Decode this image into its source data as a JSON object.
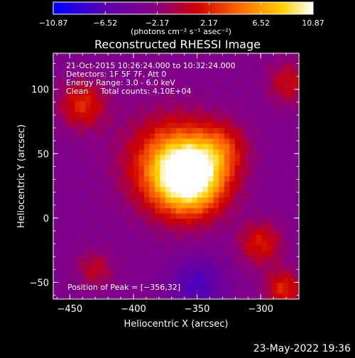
{
  "chart_data": {
    "type": "heatmap",
    "title": "Reconstructed RHESSI Image",
    "xlabel": "Heliocentric X (arcsec)",
    "ylabel": "Heliocentric Y (arcsec)",
    "xlim": [
      -463,
      -270
    ],
    "ylim": [
      -63,
      128
    ],
    "xticks": [
      -450,
      -400,
      -350,
      -300
    ],
    "xtick_labels": [
      "−450",
      "−400",
      "−350",
      "−300"
    ],
    "yticks": [
      -50,
      0,
      50,
      100
    ],
    "ytick_labels": [
      "−50",
      "0",
      "50",
      "100"
    ],
    "colorbar": {
      "range": [
        -10.87,
        10.87
      ],
      "ticks": [
        -10.87,
        -6.52,
        -2.17,
        2.17,
        6.52,
        10.87
      ],
      "tick_labels": [
        "−10.87",
        "−6.52",
        "−2.17",
        "2.17",
        "6.52",
        "10.87"
      ],
      "units_label": "(photons cm⁻² s⁻¹ asec⁻²)",
      "colors": [
        "#0000ff",
        "#5a00b0",
        "#8a0080",
        "#cc0000",
        "#ff6a00",
        "#ffd000",
        "#ffffff"
      ]
    },
    "annotations": [
      "21‐Oct‐2015 10:26:24.000 to 10:32:24.000",
      "Detectors: 1F 5F 7F, Att 0",
      "Energy Range: 3.0 ‐ 6.0 keV",
      "Clean     Total counts: 4.10E+04"
    ],
    "peak_label": "Position of Peak = [−356,32]",
    "peak": {
      "x": -356,
      "y": 32,
      "value": 10.87
    },
    "grid": false,
    "sources": [
      {
        "x": -356,
        "y": 32,
        "amp": 14.5,
        "sigma": 20
      },
      {
        "x": -372,
        "y": 44,
        "amp": 6.0,
        "sigma": 26
      },
      {
        "x": -330,
        "y": 55,
        "amp": 4.0,
        "sigma": 14
      },
      {
        "x": -440,
        "y": 88,
        "amp": 5.5,
        "sigma": 13
      },
      {
        "x": -300,
        "y": -20,
        "amp": 5.0,
        "sigma": 12
      },
      {
        "x": -278,
        "y": 105,
        "amp": 4.0,
        "sigma": 12
      },
      {
        "x": -282,
        "y": -55,
        "amp": 5.5,
        "sigma": 10
      },
      {
        "x": -430,
        "y": -40,
        "amp": 3.5,
        "sigma": 10
      },
      {
        "x": -350,
        "y": -52,
        "amp": -4.0,
        "sigma": 14
      }
    ],
    "background": -3.2
  },
  "footer_timestamp": "23‐May‐2022 19:36"
}
